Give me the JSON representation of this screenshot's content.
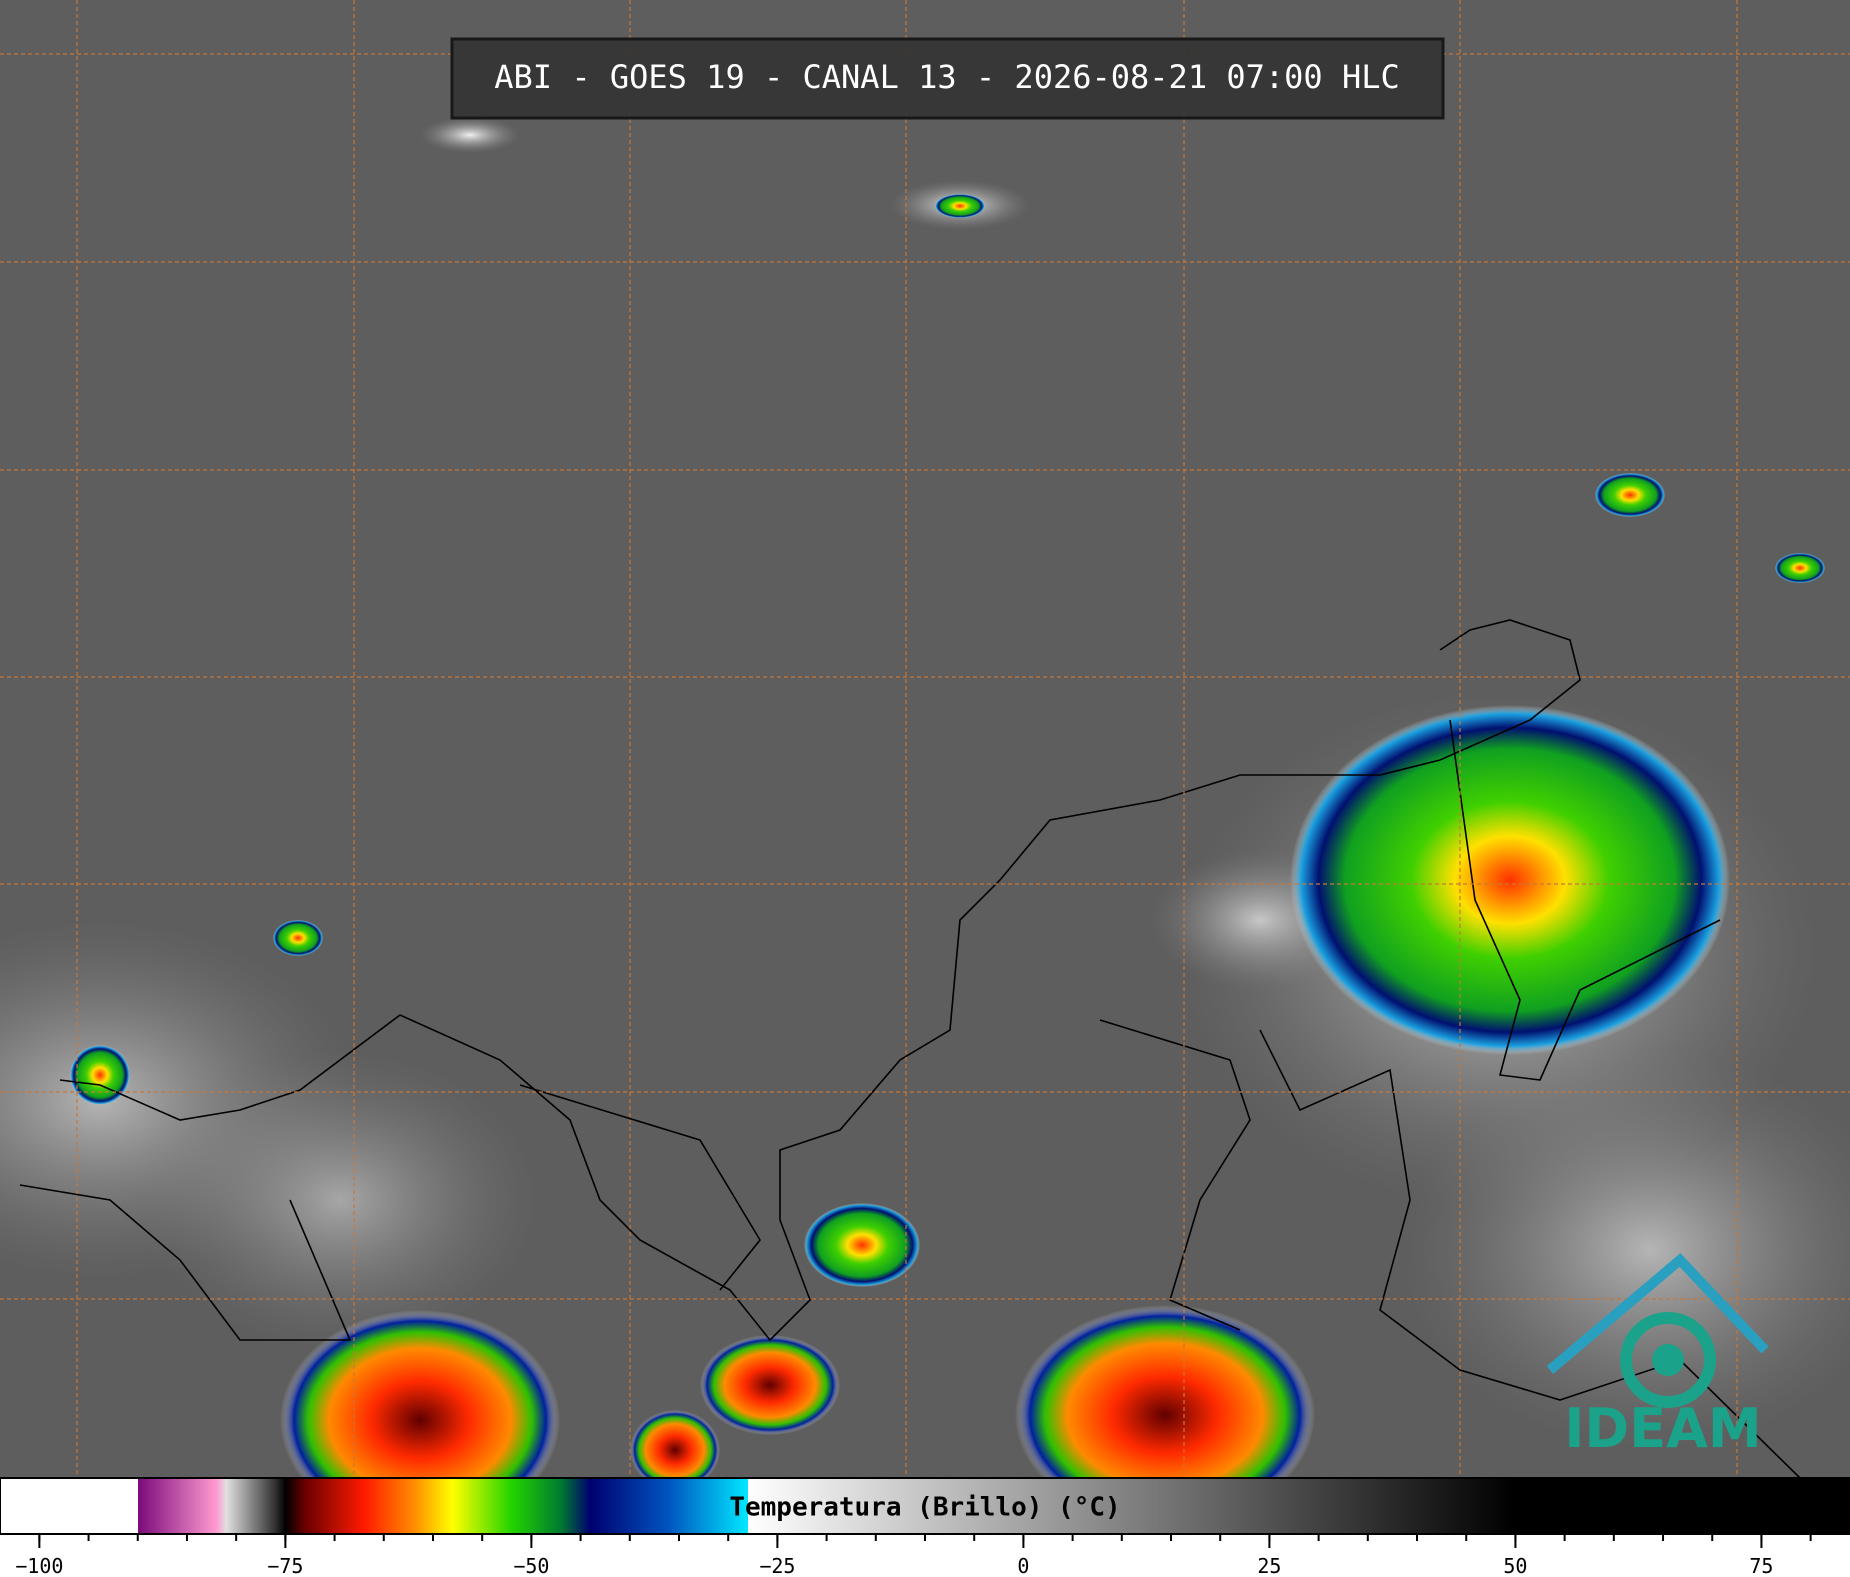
{
  "header": {
    "title": "ABI - GOES 19 - CANAL 13 - 2026-08-21 07:00 HLC"
  },
  "colorbar": {
    "label": "Temperatura (Brillo) (°C)",
    "range": [
      -104,
      84
    ],
    "ticks": [
      {
        "value": -100,
        "label": "−100"
      },
      {
        "value": -75,
        "label": "−75"
      },
      {
        "value": -50,
        "label": "−50"
      },
      {
        "value": -25,
        "label": "−25"
      },
      0,
      25,
      50,
      75
    ],
    "minor_step": 5,
    "stops": [
      {
        "value": -104,
        "color": "#ffffff"
      },
      {
        "value": -90,
        "color": "#ffffff"
      },
      {
        "value": -90,
        "color": "#7a0a7a"
      },
      {
        "value": -82,
        "color": "#ff9ad0"
      },
      {
        "value": -81,
        "color": "#e0e0e0"
      },
      {
        "value": -76,
        "color": "#303030"
      },
      {
        "value": -75,
        "color": "#000000"
      },
      {
        "value": -73,
        "color": "#6a0000"
      },
      {
        "value": -67,
        "color": "#ff1a00"
      },
      {
        "value": -62,
        "color": "#ff8a00"
      },
      {
        "value": -58,
        "color": "#ffff00"
      },
      {
        "value": -52,
        "color": "#22d400"
      },
      {
        "value": -47,
        "color": "#007a30"
      },
      {
        "value": -44,
        "color": "#000070"
      },
      {
        "value": -36,
        "color": "#0055c0"
      },
      {
        "value": -28,
        "color": "#00e8ff"
      },
      {
        "value": -28,
        "color": "#ffffff"
      },
      {
        "value": 50,
        "color": "#000000"
      },
      {
        "value": 84,
        "color": "#000000"
      }
    ]
  },
  "logo": {
    "text": "IDEAM"
  }
}
